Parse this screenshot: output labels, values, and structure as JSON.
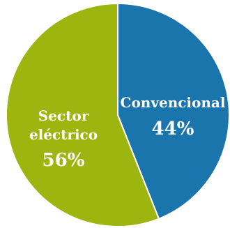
{
  "chart_data": {
    "type": "pie",
    "slices": [
      {
        "label_lines": [
          "Convencional"
        ],
        "value": 44,
        "value_label": "44%",
        "color": "#1a75ad"
      },
      {
        "label_lines": [
          "Sector",
          "eléctrico"
        ],
        "value": 56,
        "value_label": "56%",
        "color": "#9cb50f"
      }
    ],
    "start_angle_deg": 0,
    "direction": "clockwise",
    "slice_border_color": "#ffffff",
    "legend": "none",
    "title": ""
  }
}
